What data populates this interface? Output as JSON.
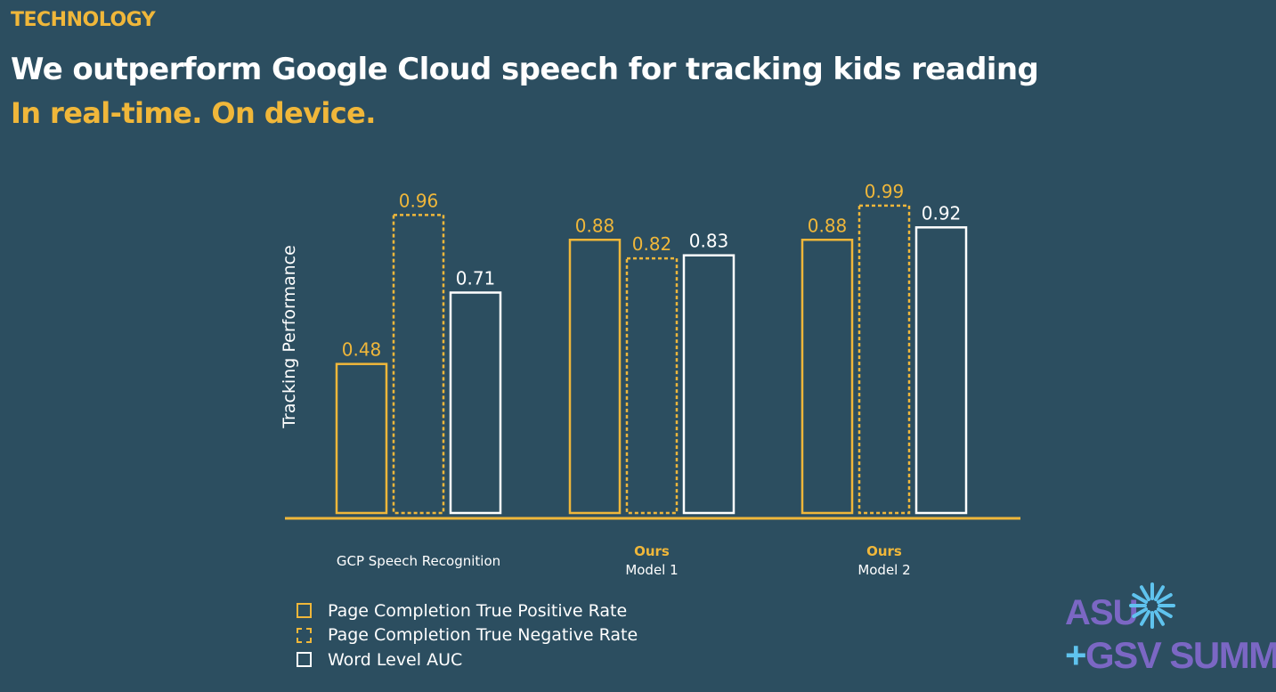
{
  "slide": {
    "section_tag": "TECHNOLOGY",
    "headline": "We outperform Google Cloud speech for tracking kids reading",
    "subheadline": "In real-time. On device."
  },
  "colors": {
    "background": "#2c4e60",
    "accent_yellow": "#f0b73a",
    "white": "#ffffff",
    "logo_purple": "#7b67c4",
    "logo_blue": "#5fc3ee"
  },
  "chart_data": {
    "type": "bar",
    "title": "",
    "xlabel": "",
    "ylabel": "Tracking Performance",
    "ylim": [
      0,
      1.05
    ],
    "grid": false,
    "legend_position": "bottom-left",
    "categories": [
      {
        "label": "GCP Speech Recognition",
        "highlight": ""
      },
      {
        "label": "Model 1",
        "highlight": "Ours"
      },
      {
        "label": "Model 2",
        "highlight": "Ours"
      }
    ],
    "series": [
      {
        "name": "Page Completion True Positive Rate",
        "values": [
          0.48,
          0.88,
          0.88
        ],
        "stroke": "#f0b73a",
        "dashed": false
      },
      {
        "name": "Page Completion True Negative Rate",
        "values": [
          0.96,
          0.82,
          0.99
        ],
        "stroke": "#f0b73a",
        "dashed": true
      },
      {
        "name": "Word Level AUC",
        "values": [
          0.71,
          0.83,
          0.92
        ],
        "stroke": "#ffffff",
        "dashed": false
      }
    ]
  },
  "logo": {
    "line1": "ASU",
    "line2_plus": "+",
    "line2": "GSV SUMMIT",
    "icon": "sunburst-icon"
  }
}
